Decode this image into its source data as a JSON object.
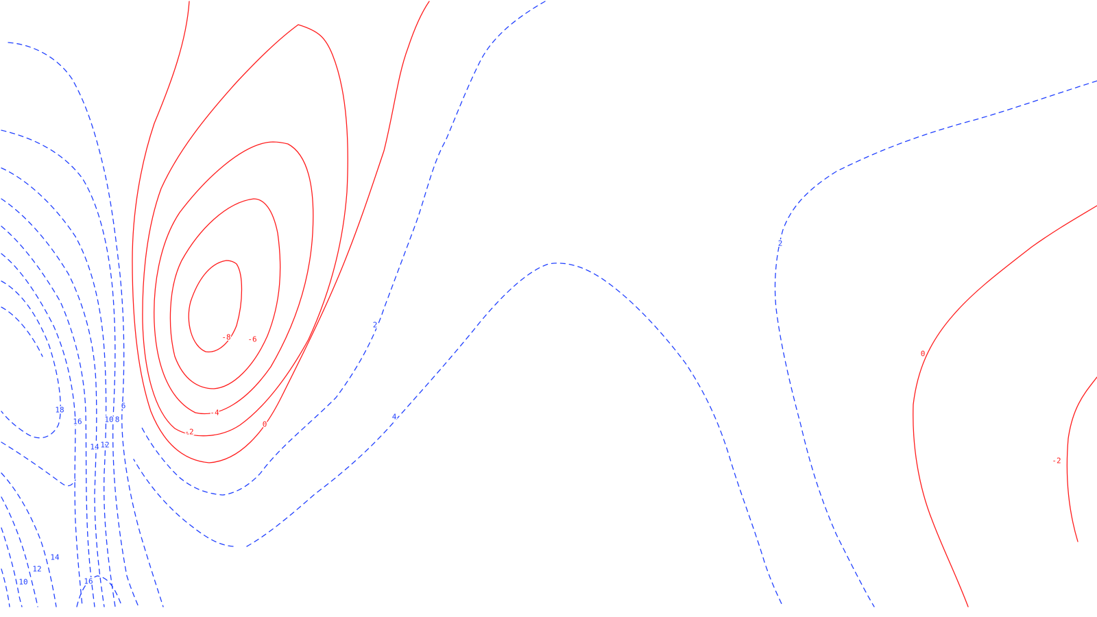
{
  "chart_data": {
    "type": "contour",
    "title": "",
    "xlabel": "",
    "ylabel": "",
    "grid": false,
    "legend": "none",
    "line_styles": {
      "negative_and_zero": {
        "color": "#ff1a1a",
        "dash": "solid"
      },
      "positive": {
        "color": "#1f3fff",
        "dash": "dashed"
      }
    },
    "levels_shown": [
      -8,
      -6,
      -4,
      -2,
      0,
      2,
      4,
      6,
      8,
      10,
      12,
      14,
      16,
      18
    ],
    "contour_labels": [
      {
        "level": -8,
        "text": "-8"
      },
      {
        "level": -6,
        "text": "-6"
      },
      {
        "level": -4,
        "text": "-4"
      },
      {
        "level": -2,
        "text": "-2"
      },
      {
        "level": 0,
        "text": "0"
      },
      {
        "level": 0,
        "text": "0"
      },
      {
        "level": -2,
        "text": "-2"
      },
      {
        "level": 2,
        "text": "2"
      },
      {
        "level": 2,
        "text": "2"
      },
      {
        "level": 4,
        "text": "4"
      },
      {
        "level": 6,
        "text": "6"
      },
      {
        "level": 8,
        "text": "8"
      },
      {
        "level": 10,
        "text": "10"
      },
      {
        "level": 12,
        "text": "12"
      },
      {
        "level": 14,
        "text": "14"
      },
      {
        "level": 16,
        "text": "16"
      },
      {
        "level": 18,
        "text": "18"
      },
      {
        "level": 14,
        "text": "14"
      },
      {
        "level": 12,
        "text": "12"
      },
      {
        "level": 10,
        "text": "10"
      },
      {
        "level": 16,
        "text": "16"
      }
    ]
  }
}
